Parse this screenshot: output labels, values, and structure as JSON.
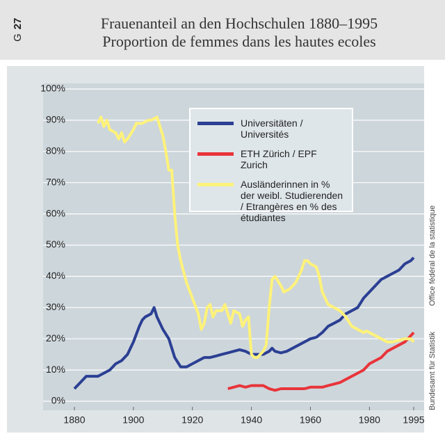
{
  "chart_data": {
    "type": "line",
    "figure_label": "G",
    "figure_number": "27",
    "title": "Frauenanteil an den Hochschulen 1880–1995",
    "subtitle": "Proportion de femmes dans les hautes ecoles",
    "source_de": "Bundesamt für Statistik",
    "source_fr": "Office fédéral de la statistique",
    "xlim": [
      1880,
      1995
    ],
    "xticks": [
      1880,
      1900,
      1920,
      1940,
      1960,
      1980,
      1995
    ],
    "ylim": [
      0,
      100
    ],
    "yticks": [
      {
        "value": 0,
        "label": "0%"
      },
      {
        "value": 10,
        "label": "10%"
      },
      {
        "value": 20,
        "label": "20%"
      },
      {
        "value": 30,
        "label": "30%"
      },
      {
        "value": 40,
        "label": "40%"
      },
      {
        "value": 50,
        "label": "50%"
      },
      {
        "value": 60,
        "label": "60%"
      },
      {
        "value": 70,
        "label": "70%"
      },
      {
        "value": 80,
        "label": "80%"
      },
      {
        "value": 90,
        "label": "90%"
      },
      {
        "value": 100,
        "label": "100%"
      }
    ],
    "grid": true,
    "series": [
      {
        "name": "Universitäten / Universités",
        "color": "#2b3f93",
        "x": [
          1880,
          1882,
          1884,
          1886,
          1888,
          1890,
          1892,
          1894,
          1896,
          1898,
          1900,
          1902,
          1903,
          1904,
          1906,
          1907,
          1908,
          1910,
          1912,
          1914,
          1916,
          1918,
          1920,
          1922,
          1924,
          1926,
          1928,
          1930,
          1932,
          1934,
          1936,
          1938,
          1940,
          1942,
          1944,
          1946,
          1947,
          1948,
          1950,
          1952,
          1954,
          1956,
          1958,
          1960,
          1962,
          1964,
          1966,
          1968,
          1970,
          1972,
          1974,
          1976,
          1978,
          1980,
          1982,
          1984,
          1986,
          1988,
          1990,
          1992,
          1994,
          1995
        ],
        "values": [
          4,
          6,
          8,
          8,
          8,
          9,
          10,
          12,
          13,
          15,
          19,
          24,
          26,
          27,
          28,
          30,
          27,
          23,
          20,
          14,
          11,
          11,
          12,
          13,
          14,
          14,
          14.5,
          15,
          15.5,
          16,
          16.5,
          16,
          15,
          15,
          15,
          16,
          17,
          16,
          15.5,
          16,
          17,
          18,
          19,
          20,
          20.5,
          22,
          24,
          25,
          26,
          28,
          29,
          30,
          33,
          35,
          37,
          39,
          40,
          41,
          42,
          44,
          45,
          46
        ]
      },
      {
        "name": "ETH Zürich / EPF Zurich",
        "color": "#e8343a",
        "x": [
          1932,
          1934,
          1936,
          1938,
          1940,
          1942,
          1944,
          1946,
          1948,
          1950,
          1952,
          1954,
          1956,
          1958,
          1960,
          1962,
          1964,
          1966,
          1968,
          1970,
          1972,
          1974,
          1976,
          1978,
          1980,
          1982,
          1984,
          1986,
          1988,
          1990,
          1992,
          1994,
          1995
        ],
        "values": [
          4,
          4.5,
          5,
          4.5,
          5,
          5,
          5,
          4,
          3.5,
          4,
          4,
          4,
          4,
          4,
          4.5,
          4.5,
          4.5,
          5,
          5.5,
          6,
          7,
          8,
          9,
          10,
          12,
          13,
          14,
          16,
          17,
          18,
          19,
          21,
          22
        ]
      },
      {
        "name": "Ausländerinnen in % der weibl. Studierenden / Etrangères en % des étudiantes",
        "color": "#fff27a",
        "x": [
          1888,
          1889,
          1890,
          1891,
          1892,
          1894,
          1895,
          1896,
          1897,
          1898,
          1900,
          1901,
          1903,
          1905,
          1906,
          1908,
          1910,
          1911,
          1912,
          1913,
          1914,
          1915,
          1916,
          1918,
          1920,
          1922,
          1923,
          1924,
          1925,
          1926,
          1927,
          1928,
          1930,
          1931,
          1932,
          1933,
          1934,
          1936,
          1937,
          1938,
          1939,
          1940,
          1941,
          1942,
          1944,
          1945,
          1946,
          1947,
          1948,
          1950,
          1951,
          1953,
          1955,
          1957,
          1958,
          1959,
          1960,
          1962,
          1963,
          1964,
          1966,
          1968,
          1970,
          1972,
          1974,
          1976,
          1978,
          1979,
          1980,
          1982,
          1984,
          1986,
          1988,
          1990,
          1992,
          1994,
          1995
        ],
        "values": [
          89,
          91,
          88,
          90,
          87,
          86,
          84,
          86,
          83,
          84,
          87,
          89,
          89,
          90,
          90,
          91,
          85,
          80,
          74,
          74,
          60,
          50,
          45,
          38,
          33,
          28,
          23,
          25,
          30,
          31,
          27,
          29,
          29,
          31,
          28,
          25,
          29,
          28,
          24,
          26,
          27,
          15,
          14,
          14,
          16,
          18,
          30,
          39,
          40,
          37,
          35,
          36,
          38,
          42,
          45,
          45,
          44,
          43,
          40,
          35,
          31,
          30,
          29,
          27,
          24,
          23,
          22,
          22.5,
          22,
          21,
          20,
          19,
          19,
          19.5,
          20,
          20,
          19
        ]
      }
    ]
  }
}
